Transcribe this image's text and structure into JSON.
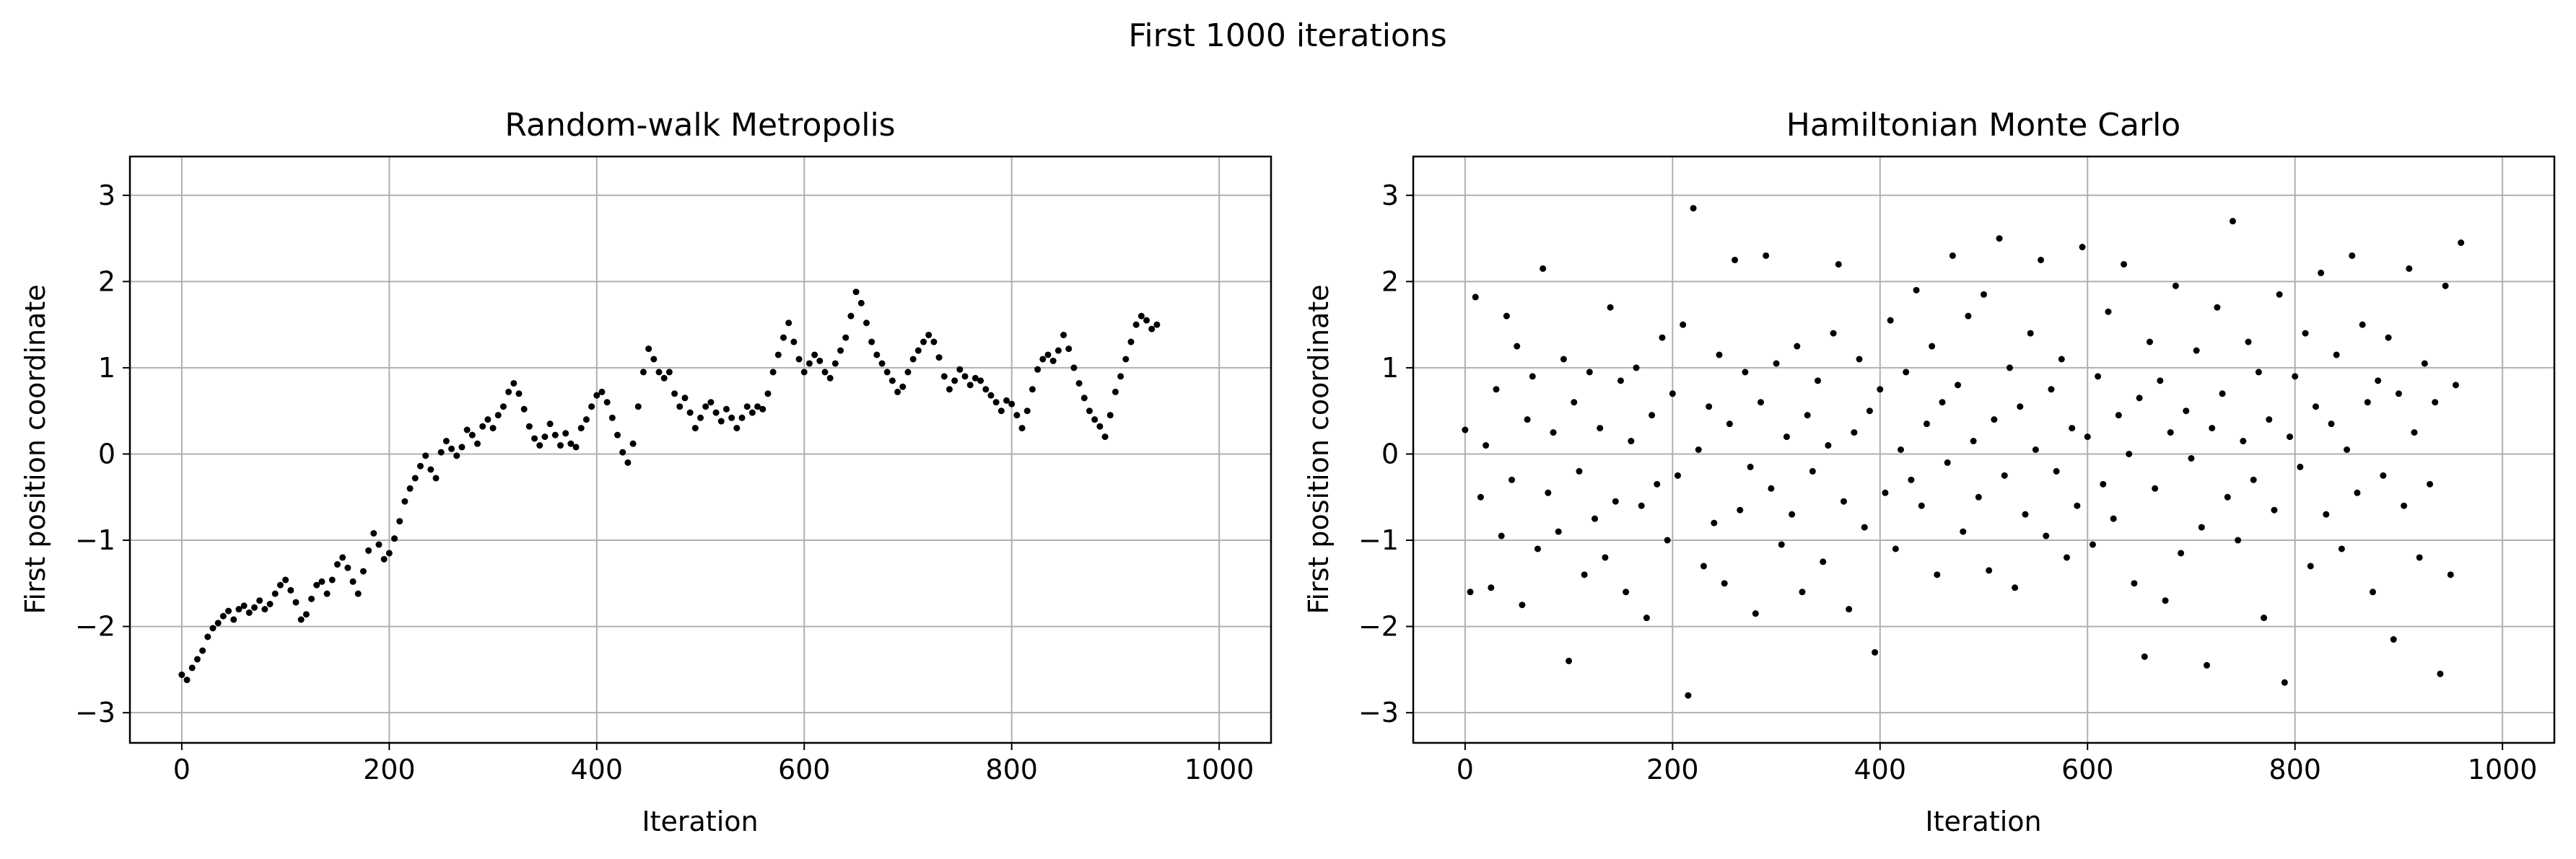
{
  "suptitle": "First 1000 iterations",
  "chart_data": [
    {
      "type": "scatter",
      "title": "Random-walk Metropolis",
      "xlabel": "Iteration",
      "ylabel": "First position coordinate",
      "xlim": [
        -50,
        1050
      ],
      "ylim": [
        -3.35,
        3.45
      ],
      "xticks": [
        0,
        200,
        400,
        600,
        800,
        1000
      ],
      "yticks": [
        -3,
        -2,
        -1,
        0,
        1,
        2,
        3
      ],
      "xtick_labels": [
        "0",
        "200",
        "400",
        "600",
        "800",
        "1000"
      ],
      "ytick_labels": [
        "−3",
        "−2",
        "−1",
        "0",
        "1",
        "2",
        "3"
      ],
      "grid": true,
      "marker_color": "#000000",
      "x_step": 5,
      "y": [
        -2.56,
        -2.62,
        -2.48,
        -2.38,
        -2.28,
        -2.12,
        -2.02,
        -1.96,
        -1.88,
        -1.82,
        -1.92,
        -1.8,
        -1.76,
        -1.84,
        -1.78,
        -1.7,
        -1.8,
        -1.74,
        -1.62,
        -1.52,
        -1.46,
        -1.58,
        -1.72,
        -1.92,
        -1.86,
        -1.68,
        -1.52,
        -1.48,
        -1.62,
        -1.46,
        -1.28,
        -1.2,
        -1.32,
        -1.48,
        -1.62,
        -1.36,
        -1.12,
        -0.92,
        -1.05,
        -1.22,
        -1.15,
        -0.98,
        -0.78,
        -0.55,
        -0.4,
        -0.28,
        -0.14,
        -0.02,
        -0.18,
        -0.28,
        0.02,
        0.15,
        0.06,
        -0.02,
        0.08,
        0.28,
        0.22,
        0.12,
        0.32,
        0.4,
        0.3,
        0.45,
        0.55,
        0.72,
        0.82,
        0.7,
        0.52,
        0.32,
        0.18,
        0.1,
        0.2,
        0.35,
        0.22,
        0.1,
        0.24,
        0.12,
        0.08,
        0.3,
        0.4,
        0.55,
        0.68,
        0.72,
        0.6,
        0.42,
        0.22,
        0.02,
        -0.1,
        0.12,
        0.55,
        0.95,
        1.22,
        1.1,
        0.95,
        0.88,
        0.95,
        0.7,
        0.55,
        0.65,
        0.48,
        0.3,
        0.42,
        0.55,
        0.6,
        0.48,
        0.38,
        0.52,
        0.42,
        0.3,
        0.42,
        0.55,
        0.48,
        0.55,
        0.52,
        0.7,
        0.95,
        1.15,
        1.35,
        1.52,
        1.3,
        1.1,
        0.95,
        1.05,
        1.15,
        1.08,
        0.95,
        0.88,
        1.05,
        1.2,
        1.35,
        1.6,
        1.88,
        1.75,
        1.52,
        1.3,
        1.15,
        1.05,
        0.95,
        0.85,
        0.72,
        0.78,
        0.95,
        1.1,
        1.2,
        1.3,
        1.38,
        1.3,
        1.12,
        0.9,
        0.75,
        0.85,
        0.98,
        0.9,
        0.8,
        0.88,
        0.85,
        0.75,
        0.68,
        0.6,
        0.5,
        0.62,
        0.58,
        0.45,
        0.3,
        0.5,
        0.75,
        0.98,
        1.1,
        1.15,
        1.08,
        1.2,
        1.38,
        1.22,
        1.0,
        0.82,
        0.65,
        0.5,
        0.4,
        0.32,
        0.2,
        0.45,
        0.72,
        0.9,
        1.1,
        1.3,
        1.5,
        1.6,
        1.55,
        1.45,
        1.5
      ]
    },
    {
      "type": "scatter",
      "title": "Hamiltonian Monte Carlo",
      "xlabel": "Iteration",
      "ylabel": "First position coordinate",
      "xlim": [
        -50,
        1050
      ],
      "ylim": [
        -3.35,
        3.45
      ],
      "xticks": [
        0,
        200,
        400,
        600,
        800,
        1000
      ],
      "yticks": [
        -3,
        -2,
        -1,
        0,
        1,
        2,
        3
      ],
      "xtick_labels": [
        "0",
        "200",
        "400",
        "600",
        "800",
        "1000"
      ],
      "ytick_labels": [
        "−3",
        "−2",
        "−1",
        "0",
        "1",
        "2",
        "3"
      ],
      "grid": true,
      "marker_color": "#000000",
      "x_step": 5,
      "y": [
        0.28,
        -1.6,
        1.82,
        -0.5,
        0.1,
        -1.55,
        0.75,
        -0.95,
        1.6,
        -0.3,
        1.25,
        -1.75,
        0.4,
        0.9,
        -1.1,
        2.15,
        -0.45,
        0.25,
        -0.9,
        1.1,
        -2.4,
        0.6,
        -0.2,
        -1.4,
        0.95,
        -0.75,
        0.3,
        -1.2,
        1.7,
        -0.55,
        0.85,
        -1.6,
        0.15,
        1.0,
        -0.6,
        -1.9,
        0.45,
        -0.35,
        1.35,
        -1.0,
        0.7,
        -0.25,
        1.5,
        -2.8,
        2.85,
        0.05,
        -1.3,
        0.55,
        -0.8,
        1.15,
        -1.5,
        0.35,
        2.25,
        -0.65,
        0.95,
        -0.15,
        -1.85,
        0.6,
        2.3,
        -0.4,
        1.05,
        -1.05,
        0.2,
        -0.7,
        1.25,
        -1.6,
        0.45,
        -0.2,
        0.85,
        -1.25,
        0.1,
        1.4,
        2.2,
        -0.55,
        -1.8,
        0.25,
        1.1,
        -0.85,
        0.5,
        -2.3,
        0.75,
        -0.45,
        1.55,
        -1.1,
        0.05,
        0.95,
        -0.3,
        1.9,
        -0.6,
        0.35,
        1.25,
        -1.4,
        0.6,
        -0.1,
        2.3,
        0.8,
        -0.9,
        1.6,
        0.15,
        -0.5,
        1.85,
        -1.35,
        0.4,
        2.5,
        -0.25,
        1.0,
        -1.55,
        0.55,
        -0.7,
        1.4,
        0.05,
        2.25,
        -0.95,
        0.75,
        -0.2,
        1.1,
        -1.2,
        0.3,
        -0.6,
        2.4,
        0.2,
        -1.05,
        0.9,
        -0.35,
        1.65,
        -0.75,
        0.45,
        2.2,
        0.0,
        -1.5,
        0.65,
        -2.35,
        1.3,
        -0.4,
        0.85,
        -1.7,
        0.25,
        1.95,
        -1.15,
        0.5,
        -0.05,
        1.2,
        -0.85,
        -2.45,
        0.3,
        1.7,
        0.7,
        -0.5,
        2.7,
        -1.0,
        0.15,
        1.3,
        -0.3,
        0.95,
        -1.9,
        0.4,
        -0.65,
        1.85,
        -2.65,
        0.2,
        0.9,
        -0.15,
        1.4,
        -1.3,
        0.55,
        2.1,
        -0.7,
        0.35,
        1.15,
        -1.1,
        0.05,
        2.3,
        -0.45,
        1.5,
        0.6,
        -1.6,
        0.85,
        -0.25,
        1.35,
        -2.15,
        0.7,
        -0.6,
        2.15,
        0.25,
        -1.2,
        1.05,
        -0.35,
        0.6,
        -2.55,
        1.95,
        -1.4,
        0.8,
        2.45
      ]
    }
  ]
}
